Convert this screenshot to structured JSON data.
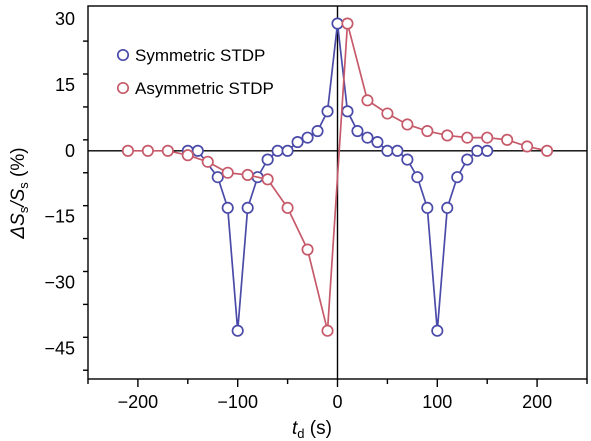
{
  "chart_data": {
    "type": "scatter",
    "xlabel": {
      "main": "t",
      "sub": "d",
      "unit": " (s)"
    },
    "ylabel": {
      "delta": "ΔS",
      "sub1": "s",
      "slash": "/S",
      "sub2": "s",
      "unit": " (%)"
    },
    "xlim": [
      -250,
      250
    ],
    "ylim": [
      -52,
      33
    ],
    "x_ticks": [
      -200,
      -100,
      0,
      100,
      200
    ],
    "x_tick_labels": [
      "−200",
      "−100",
      "0",
      "100",
      "200"
    ],
    "y_ticks": [
      30,
      15,
      0,
      -15,
      -30,
      -45
    ],
    "y_tick_labels": [
      "30",
      "15",
      "0",
      "−15",
      "−30",
      "−45"
    ],
    "grid": false,
    "zero_lines": true,
    "legend_position": "top-left",
    "series": [
      {
        "name": "Symmetric STDP",
        "color": "#4a4aa8",
        "x": [
          -150,
          -140,
          -120,
          -110,
          -100,
          -90,
          -80,
          -70,
          -60,
          -50,
          -40,
          -30,
          -20,
          -10,
          0,
          10,
          20,
          30,
          40,
          50,
          60,
          70,
          80,
          90,
          100,
          110,
          120,
          130,
          140,
          150
        ],
        "y": [
          0,
          0,
          -6,
          -13,
          -41,
          -13,
          -6,
          -2,
          0,
          0,
          2,
          3,
          4.5,
          9,
          29,
          9,
          4.5,
          3,
          2,
          0,
          0,
          -2,
          -6,
          -13,
          -41,
          -13,
          -6,
          -2,
          0,
          0
        ]
      },
      {
        "name": "Asymmetric STDP",
        "color": "#c65a6a",
        "x": [
          -210,
          -190,
          -170,
          -150,
          -130,
          -110,
          -90,
          -70,
          -50,
          -30,
          -10,
          10,
          30,
          50,
          70,
          90,
          110,
          130,
          150,
          170,
          190,
          210
        ],
        "y": [
          0,
          0,
          0,
          -1,
          -2.5,
          -5,
          -5.5,
          -6.5,
          -13,
          -22.5,
          -41,
          29,
          11.5,
          8.5,
          6,
          4.5,
          3.5,
          3,
          3,
          2.5,
          1,
          0
        ]
      }
    ]
  }
}
